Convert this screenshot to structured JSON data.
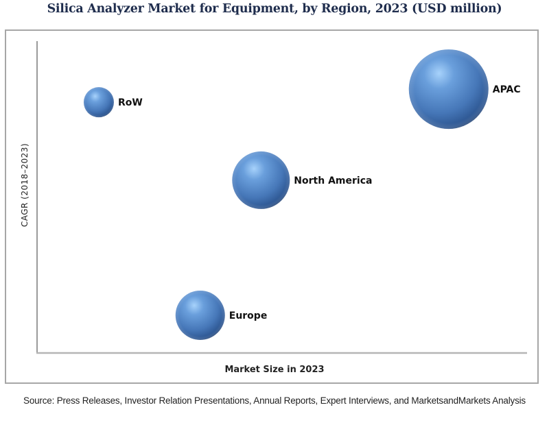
{
  "chart_data": {
    "type": "scatter",
    "subtype": "bubble",
    "title": "Silica Analyzer Market for Equipment, by Region, 2023 (USD million)",
    "xlabel": "Market Size in 2023",
    "ylabel": "CAGR (2018–2023)",
    "xlim": [
      0,
      100
    ],
    "ylim": [
      0,
      100
    ],
    "grid": false,
    "legend": "none",
    "points": [
      {
        "label": "RoW",
        "x": 12.6,
        "y": 80.4,
        "size": 22
      },
      {
        "label": "North America",
        "x": 45.7,
        "y": 55.4,
        "size": 42
      },
      {
        "label": "Europe",
        "x": 33.3,
        "y": 12.1,
        "size": 36
      },
      {
        "label": "APAC",
        "x": 84.0,
        "y": 84.6,
        "size": 58
      }
    ],
    "bubble_color": "#4a7fc1",
    "bubble_highlight": "#9cc8f5",
    "bubble_shadow": "#1d3a66"
  },
  "source": "Source: Press Releases, Investor Relation Presentations, Annual Reports, Expert Interviews, and MarketsandMarkets Analysis"
}
